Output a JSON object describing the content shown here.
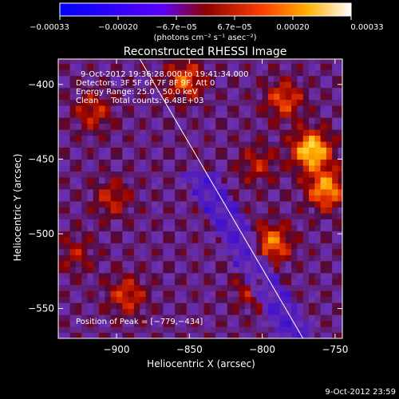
{
  "chart_data": {
    "type": "heatmap",
    "title": "Reconstructed RHESSI Image",
    "xlabel": "Heliocentric X (arcsec)",
    "ylabel": "Heliocentric Y (arcsec)",
    "xlim": [
      -940,
      -745
    ],
    "ylim": [
      -570,
      -383
    ],
    "x_ticks": [
      -900,
      -850,
      -800,
      -750
    ],
    "x_tick_labels": [
      "−900",
      "−850",
      "−800",
      "−750"
    ],
    "y_ticks": [
      -550,
      -500,
      -450,
      -400
    ],
    "y_tick_labels": [
      "−550",
      "−500",
      "−450",
      "−400"
    ],
    "colorbar": {
      "range": [
        -0.00033,
        0.00033
      ],
      "tick_labels": [
        "−0.00033",
        "−0.00020",
        "−6.7e−05",
        "6.7e−05",
        "0.00020",
        "0.00033"
      ],
      "unit_label": "(photons cm⁻² s⁻¹ asec⁻²)",
      "colors": [
        "#0000ff",
        "#5a00ff",
        "#8e0000",
        "#ff4000",
        "#ffb000",
        "#ffffff"
      ]
    },
    "annotations": [
      "9-Oct-2012 19:36:28.000 to 19:41:34.000",
      "Detectors: 3F 5F 6F 7F 8F 9F, Att 0",
      "Energy Range: 25.0 - 50.0 keV",
      "Clean     Total counts: 6.48E+03"
    ],
    "peak_label": "Position of Peak = [−779,−434]",
    "peak": [
      -779,
      -434
    ],
    "limb_line": [
      [
        -884,
        -383
      ],
      [
        -772,
        -570
      ]
    ],
    "timestamp": "9-Oct-2012 23:59",
    "sources": [
      {
        "x": -768,
        "y": -446,
        "intensity": 0.00033
      },
      {
        "x": -758,
        "y": -472,
        "intensity": 0.00026
      },
      {
        "x": -795,
        "y": -508,
        "intensity": 0.00022
      },
      {
        "x": -787,
        "y": -412,
        "intensity": 0.00018
      },
      {
        "x": -855,
        "y": -399,
        "intensity": 0.0002
      },
      {
        "x": -918,
        "y": -420,
        "intensity": 0.00014
      },
      {
        "x": -905,
        "y": -478,
        "intensity": 0.00013
      },
      {
        "x": -895,
        "y": -543,
        "intensity": 0.00016
      },
      {
        "x": -930,
        "y": -515,
        "intensity": 0.0001
      },
      {
        "x": -805,
        "y": -455,
        "intensity": 0.00012
      },
      {
        "x": -810,
        "y": -540,
        "intensity": 0.0001
      }
    ]
  }
}
